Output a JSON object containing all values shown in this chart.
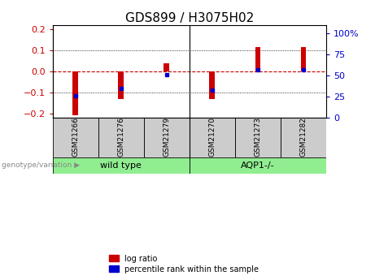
{
  "title": "GDS899 / H3075H02",
  "samples": [
    "GSM21266",
    "GSM21276",
    "GSM21279",
    "GSM21270",
    "GSM21273",
    "GSM21282"
  ],
  "log_ratios": [
    -0.21,
    -0.13,
    0.04,
    -0.13,
    0.115,
    0.115
  ],
  "percentile_ranks": [
    26,
    35,
    51,
    33,
    57,
    57
  ],
  "group_labels": [
    "wild type",
    "AQP1-/-"
  ],
  "group_colors": [
    "#90ee90",
    "#90ee90"
  ],
  "genotype_label": "genotype/variation",
  "bar_color": "#cc0000",
  "dot_color": "#0000cc",
  "ylim_left": [
    -0.22,
    0.22
  ],
  "ylim_right": [
    0,
    110
  ],
  "left_yticks": [
    -0.2,
    -0.1,
    0.0,
    0.1,
    0.2
  ],
  "right_yticks": [
    0,
    25,
    50,
    75,
    100
  ],
  "right_ytick_labels": [
    "0",
    "25",
    "50",
    "75",
    "100%"
  ],
  "hline_zero": 0.0,
  "hline_color": "#cc0000",
  "grid_lines": [
    -0.1,
    0.1
  ],
  "legend_log_ratio": "log ratio",
  "legend_percentile": "percentile rank within the sample",
  "bar_width": 0.12,
  "tick_label_color_left": "#cc0000",
  "tick_label_color_right": "#0000cc",
  "title_fontsize": 11,
  "axis_fontsize": 8,
  "sample_box_color": "#cccccc",
  "separator_index": 2
}
